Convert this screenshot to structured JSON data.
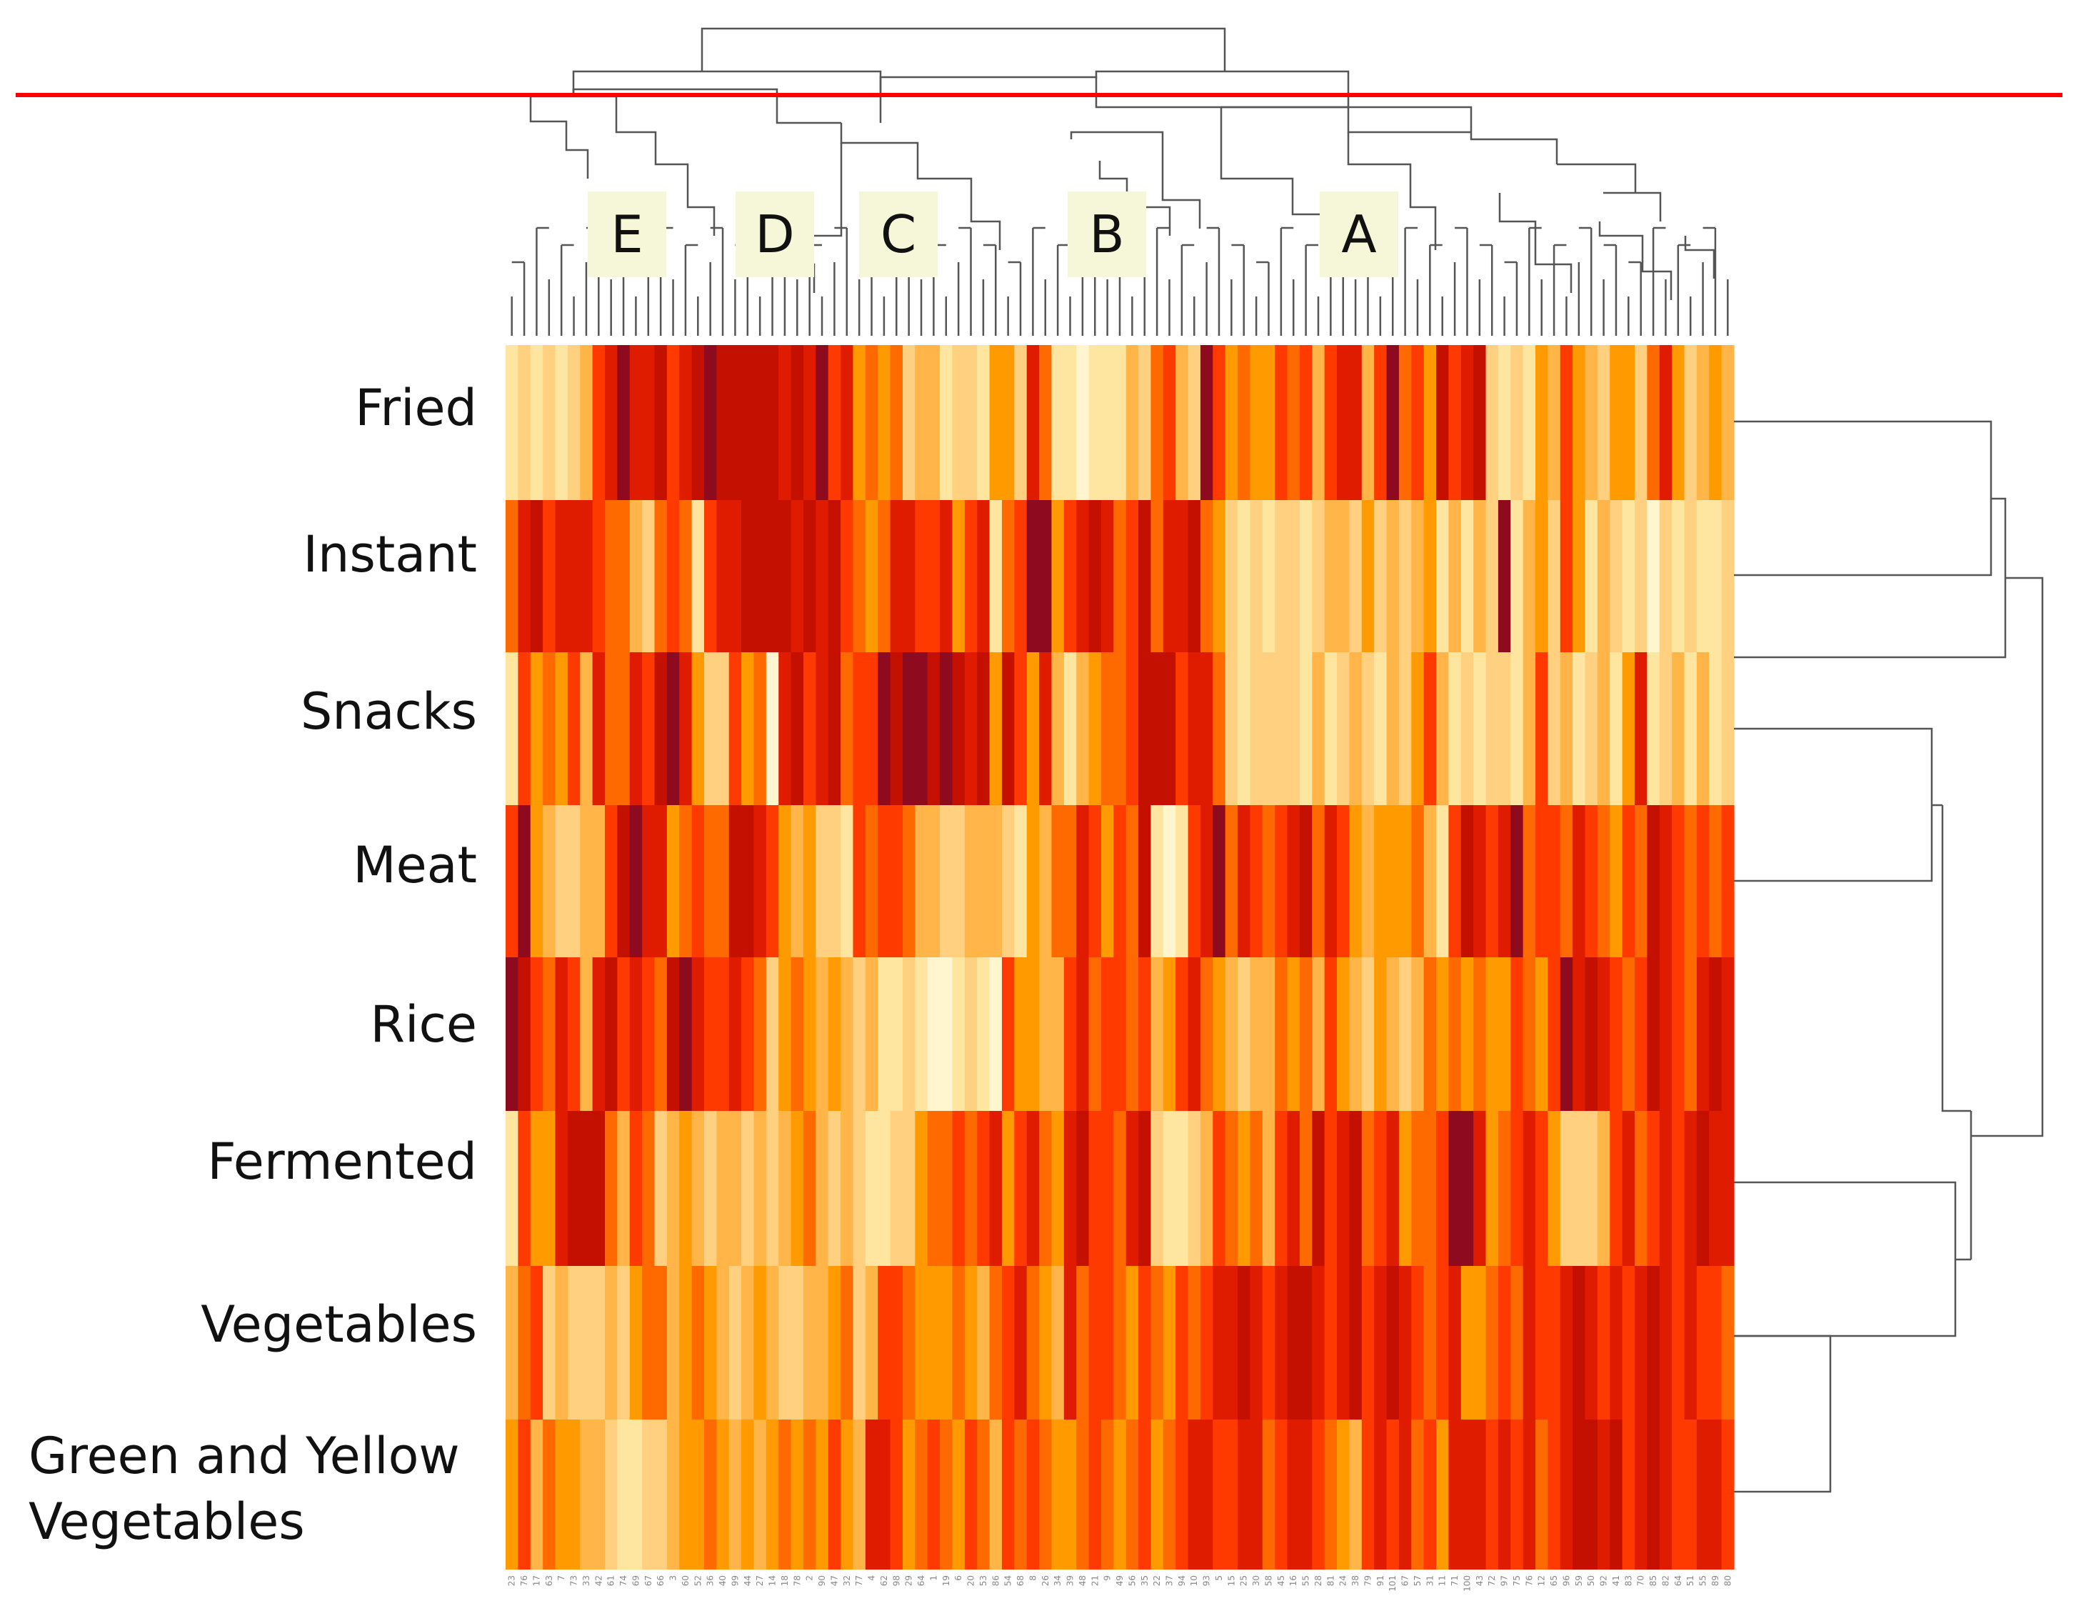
{
  "chart_data": {
    "type": "heatmap",
    "title": "",
    "rows": [
      "Fried",
      "Instant",
      "Snacks",
      "Meat",
      "Rice",
      "Fermented",
      "Vegetables",
      "Green and Yellow Vegetables"
    ],
    "row_label_lines": [
      [
        "Fried"
      ],
      [
        "Instant"
      ],
      [
        "Snacks"
      ],
      [
        "Meat"
      ],
      [
        "Rice"
      ],
      [
        "Fermented"
      ],
      [
        "Vegetables"
      ],
      [
        "Green and Yellow",
        "Vegetables"
      ]
    ],
    "columns": [
      "23",
      "76",
      "17",
      "63",
      "7",
      "73",
      "33",
      "42",
      "61",
      "74",
      "69",
      "67",
      "66",
      "3",
      "60",
      "52",
      "36",
      "40",
      "99",
      "44",
      "27",
      "14",
      "18",
      "78",
      "2",
      "90",
      "47",
      "32",
      "77",
      "4",
      "62",
      "98",
      "29",
      "64",
      "1",
      "19",
      "6",
      "20",
      "53",
      "86",
      "54",
      "68",
      "8",
      "26",
      "34",
      "39",
      "48",
      "21",
      "9",
      "49",
      "56",
      "35",
      "22",
      "37",
      "94",
      "10",
      "93",
      "5",
      "15",
      "25",
      "30",
      "58",
      "45",
      "16",
      "55",
      "28",
      "81",
      "24",
      "38",
      "79",
      "91",
      "101",
      "67",
      "57",
      "31",
      "11",
      "71",
      "100",
      "43",
      "72",
      "97",
      "75",
      "76",
      "12",
      "65",
      "96",
      "59",
      "50",
      "92",
      "41",
      "83",
      "70",
      "85",
      "82",
      "64",
      "51",
      "55",
      "89",
      "80"
    ],
    "cluster_labels": [
      "E",
      "D",
      "C",
      "B",
      "A"
    ],
    "cut_line": "red horizontal cut line across the column dendrogram",
    "color_scale": [
      "#fff5cf",
      "#ffe6a0",
      "#ffd080",
      "#ffb547",
      "#ff9a00",
      "#ff6a00",
      "#ff3a00",
      "#e01c00",
      "#c41000",
      "#8e0a1e"
    ],
    "row_column_groups": [
      [
        1,
        2,
        1,
        2,
        1,
        2,
        3,
        6,
        7,
        9,
        7,
        7,
        8,
        6,
        7,
        8,
        9,
        8,
        8,
        8,
        8,
        8,
        7,
        8,
        7,
        9,
        6,
        7,
        4,
        5,
        4,
        5,
        2,
        3,
        3,
        1,
        2,
        2,
        1,
        4,
        4,
        2,
        7,
        5,
        1,
        1,
        0,
        1,
        1,
        1,
        3,
        2,
        5,
        6,
        3,
        2,
        9,
        6,
        4,
        5,
        4,
        4,
        6,
        5,
        6,
        3,
        6,
        7,
        7,
        3,
        6,
        9,
        5,
        6,
        4,
        8,
        6,
        7,
        8,
        2,
        1,
        2,
        1,
        4,
        3,
        6,
        4,
        3,
        2,
        4,
        4,
        2,
        5,
        7,
        4,
        2,
        3,
        4,
        3
      ],
      [
        5,
        7,
        8,
        6,
        7,
        7,
        7,
        6,
        5,
        5,
        3,
        2,
        5,
        6,
        5,
        1,
        6,
        7,
        7,
        8,
        8,
        8,
        8,
        7,
        8,
        7,
        8,
        6,
        5,
        4,
        5,
        7,
        7,
        6,
        6,
        7,
        4,
        6,
        7,
        1,
        5,
        6,
        9,
        9,
        4,
        6,
        7,
        8,
        7,
        5,
        6,
        8,
        5,
        7,
        7,
        8,
        5,
        4,
        2,
        1,
        2,
        1,
        2,
        2,
        1,
        2,
        3,
        3,
        2,
        4,
        2,
        3,
        2,
        3,
        4,
        1,
        3,
        1,
        3,
        2,
        9,
        1,
        3,
        4,
        2,
        6,
        4,
        1,
        3,
        2,
        1,
        2,
        0,
        2,
        1,
        2,
        1,
        1,
        2
      ],
      [
        1,
        6,
        4,
        5,
        4,
        6,
        3,
        7,
        5,
        5,
        7,
        6,
        8,
        9,
        7,
        4,
        2,
        2,
        6,
        4,
        5,
        0,
        7,
        8,
        6,
        7,
        8,
        5,
        6,
        6,
        9,
        8,
        9,
        9,
        8,
        9,
        8,
        7,
        8,
        4,
        8,
        6,
        4,
        7,
        3,
        1,
        3,
        4,
        5,
        5,
        6,
        8,
        8,
        8,
        6,
        7,
        7,
        5,
        2,
        1,
        2,
        2,
        2,
        2,
        1,
        3,
        1,
        2,
        3,
        2,
        1,
        3,
        2,
        4,
        6,
        3,
        1,
        2,
        1,
        2,
        2,
        1,
        3,
        6,
        2,
        3,
        1,
        2,
        3,
        1,
        4,
        7,
        1,
        2,
        3,
        1,
        3,
        1,
        2
      ],
      [
        6,
        9,
        4,
        3,
        2,
        2,
        3,
        3,
        6,
        8,
        9,
        7,
        7,
        4,
        5,
        6,
        5,
        5,
        8,
        8,
        7,
        6,
        4,
        3,
        4,
        2,
        2,
        1,
        6,
        5,
        6,
        6,
        5,
        3,
        3,
        2,
        2,
        3,
        3,
        3,
        2,
        1,
        4,
        3,
        5,
        5,
        7,
        6,
        4,
        6,
        5,
        8,
        1,
        0,
        1,
        6,
        7,
        9,
        5,
        7,
        6,
        5,
        6,
        7,
        8,
        5,
        7,
        6,
        4,
        3,
        4,
        4,
        4,
        5,
        3,
        1,
        6,
        8,
        7,
        6,
        7,
        9,
        5,
        6,
        6,
        5,
        7,
        6,
        5,
        4,
        6,
        5,
        8,
        7,
        6,
        5,
        6,
        5,
        6
      ],
      [
        9,
        8,
        6,
        5,
        7,
        6,
        3,
        7,
        8,
        6,
        7,
        6,
        5,
        8,
        9,
        7,
        6,
        6,
        7,
        6,
        5,
        2,
        4,
        5,
        4,
        3,
        4,
        3,
        2,
        3,
        1,
        1,
        2,
        1,
        0,
        0,
        1,
        2,
        1,
        0,
        6,
        4,
        4,
        3,
        3,
        6,
        7,
        5,
        6,
        6,
        5,
        6,
        3,
        4,
        6,
        7,
        5,
        4,
        3,
        2,
        3,
        3,
        5,
        4,
        5,
        3,
        6,
        4,
        3,
        2,
        4,
        3,
        2,
        3,
        5,
        4,
        5,
        4,
        5,
        4,
        4,
        6,
        5,
        4,
        6,
        9,
        7,
        8,
        7,
        6,
        5,
        6,
        8,
        7,
        6,
        5,
        7,
        8,
        7
      ],
      [
        1,
        6,
        4,
        4,
        7,
        8,
        8,
        8,
        5,
        3,
        6,
        5,
        2,
        3,
        4,
        3,
        2,
        3,
        3,
        2,
        3,
        2,
        3,
        4,
        5,
        3,
        2,
        3,
        2,
        1,
        1,
        2,
        2,
        4,
        5,
        5,
        6,
        5,
        6,
        7,
        4,
        6,
        7,
        5,
        4,
        7,
        8,
        6,
        6,
        5,
        7,
        8,
        2,
        1,
        1,
        2,
        3,
        6,
        5,
        4,
        5,
        3,
        6,
        7,
        5,
        8,
        6,
        7,
        8,
        5,
        6,
        7,
        4,
        5,
        5,
        6,
        9,
        9,
        7,
        4,
        5,
        6,
        7,
        6,
        4,
        2,
        2,
        2,
        3,
        6,
        7,
        5,
        6,
        7,
        6,
        7,
        8,
        7,
        7
      ],
      [
        3,
        5,
        6,
        2,
        3,
        2,
        2,
        2,
        3,
        2,
        4,
        5,
        5,
        3,
        4,
        5,
        4,
        3,
        2,
        3,
        4,
        3,
        2,
        2,
        3,
        3,
        4,
        5,
        2,
        3,
        6,
        6,
        5,
        4,
        4,
        4,
        5,
        4,
        3,
        5,
        6,
        7,
        5,
        4,
        3,
        7,
        5,
        6,
        6,
        5,
        4,
        6,
        5,
        4,
        6,
        5,
        6,
        7,
        7,
        8,
        7,
        6,
        7,
        8,
        8,
        7,
        6,
        7,
        8,
        6,
        7,
        8,
        7,
        6,
        5,
        6,
        7,
        4,
        4,
        5,
        6,
        5,
        7,
        6,
        6,
        7,
        8,
        7,
        6,
        7,
        6,
        7,
        8,
        7,
        6,
        7,
        6,
        6,
        5
      ],
      [
        4,
        6,
        3,
        5,
        4,
        4,
        3,
        3,
        2,
        1,
        1,
        2,
        2,
        3,
        4,
        4,
        5,
        4,
        3,
        4,
        3,
        4,
        5,
        4,
        5,
        4,
        6,
        4,
        3,
        7,
        7,
        6,
        4,
        5,
        6,
        5,
        4,
        6,
        5,
        3,
        6,
        5,
        6,
        5,
        4,
        4,
        5,
        6,
        5,
        4,
        5,
        6,
        4,
        5,
        6,
        7,
        7,
        6,
        6,
        7,
        7,
        5,
        6,
        7,
        7,
        6,
        5,
        4,
        3,
        6,
        7,
        6,
        7,
        5,
        6,
        4,
        7,
        7,
        7,
        6,
        7,
        6,
        7,
        5,
        6,
        7,
        8,
        8,
        7,
        8,
        6,
        7,
        8,
        7,
        6,
        6,
        7,
        7,
        6
      ]
    ]
  }
}
